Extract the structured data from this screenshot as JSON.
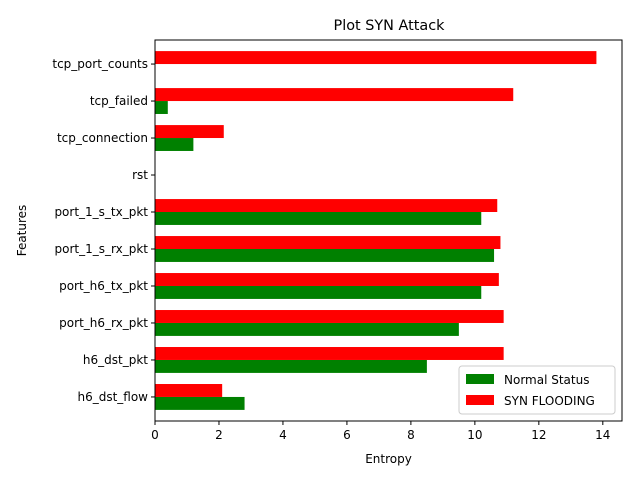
{
  "chart_data": {
    "type": "bar",
    "orientation": "horizontal",
    "title": "Plot SYN Attack",
    "xlabel": "Entropy",
    "ylabel": "Features",
    "xlim": [
      0,
      14.6
    ],
    "xticks": [
      0,
      2,
      4,
      6,
      8,
      10,
      12,
      14
    ],
    "categories": [
      "h6_dst_flow",
      "h6_dst_pkt",
      "port_h6_rx_pkt",
      "port_h6_tx_pkt",
      "port_1_s_rx_pkt",
      "port_1_s_tx_pkt",
      "rst",
      "tcp_connection",
      "tcp_failed",
      "tcp_port_counts"
    ],
    "series": [
      {
        "name": "Normal Status",
        "color": "#008000",
        "values": [
          2.8,
          8.5,
          9.5,
          10.2,
          10.6,
          10.2,
          0,
          1.2,
          0.4,
          0
        ]
      },
      {
        "name": "SYN FLOODING",
        "color": "#ff0000",
        "values": [
          2.1,
          10.9,
          10.9,
          10.75,
          10.8,
          10.7,
          0,
          2.15,
          11.2,
          13.8
        ]
      }
    ],
    "legend_position": "lower-right",
    "grid": false
  }
}
